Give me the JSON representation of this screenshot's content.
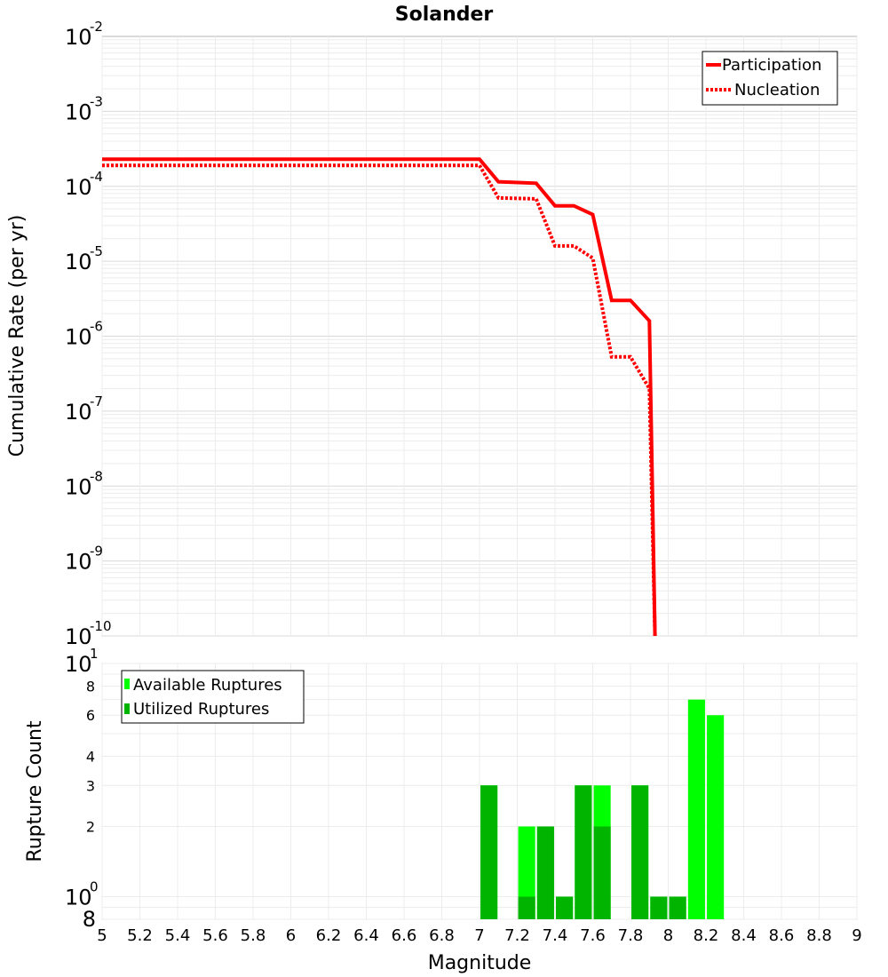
{
  "chart_data": [
    {
      "type": "line",
      "title": "Solander",
      "xlabel": "",
      "ylabel": "Cumulative Rate (per yr)",
      "yscale": "log",
      "xlim": [
        5,
        9
      ],
      "ylim": [
        1e-10,
        0.01
      ],
      "ytick_exponents": [
        "-2",
        "-3",
        "-4",
        "-5",
        "-6",
        "-7",
        "-8",
        "-9",
        "-10"
      ],
      "grid": true,
      "legend_position": "top-right",
      "colors": {
        "line": "#ff0000"
      },
      "series": [
        {
          "name": "Participation",
          "style": "solid",
          "x": [
            5.0,
            7.0,
            7.1,
            7.3,
            7.4,
            7.5,
            7.6,
            7.7,
            7.8,
            7.9,
            7.93
          ],
          "y": [
            0.00023,
            0.00023,
            0.000115,
            0.00011,
            5.5e-05,
            5.5e-05,
            4.2e-05,
            3e-06,
            3e-06,
            1.6e-06,
            1e-10
          ]
        },
        {
          "name": "Nucleation",
          "style": "dotted",
          "x": [
            5.0,
            7.0,
            7.1,
            7.3,
            7.4,
            7.5,
            7.6,
            7.7,
            7.8,
            7.9,
            7.93
          ],
          "y": [
            0.00019,
            0.00019,
            7e-05,
            6.8e-05,
            1.6e-05,
            1.6e-05,
            1.1e-05,
            5.3e-07,
            5.3e-07,
            2e-07,
            1e-10
          ]
        }
      ]
    },
    {
      "type": "bar",
      "xlabel": "Magnitude",
      "ylabel": "Rupture Count",
      "yscale": "log",
      "xlim": [
        5,
        9
      ],
      "ylim": [
        0.8,
        10
      ],
      "x_ticks": [
        "5",
        "5.2",
        "5.4",
        "5.6",
        "5.8",
        "6",
        "6.2",
        "6.4",
        "6.6",
        "6.8",
        "7",
        "7.2",
        "7.4",
        "7.6",
        "7.8",
        "8",
        "8.2",
        "8.4",
        "8.6",
        "8.8",
        "9"
      ],
      "y_major_ticks": [
        {
          "base": "10",
          "exp": "0"
        },
        {
          "base": "10",
          "exp": "1"
        }
      ],
      "y_minor_ticks": [
        "2",
        "3",
        "4",
        "6",
        "8"
      ],
      "y_bottom_label": "8",
      "grid": true,
      "legend_position": "top-left",
      "colors": {
        "available": "#00ff00",
        "utilized": "#00b400"
      },
      "categories": [
        7.05,
        7.25,
        7.35,
        7.45,
        7.55,
        7.65,
        7.85,
        7.95,
        8.05,
        8.15,
        8.25
      ],
      "series": [
        {
          "name": "Available Ruptures",
          "values": [
            3,
            2,
            2,
            1,
            3,
            3,
            3,
            1,
            1,
            7,
            6
          ]
        },
        {
          "name": "Utilized Ruptures",
          "values": [
            3,
            1,
            2,
            1,
            3,
            2,
            3,
            1,
            1,
            0,
            0
          ]
        }
      ]
    }
  ]
}
